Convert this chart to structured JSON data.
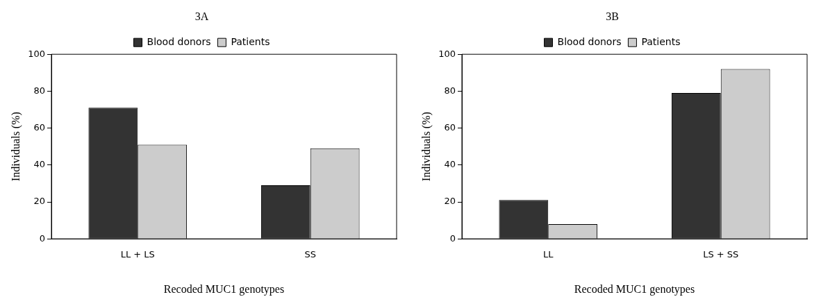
{
  "chart_data": [
    {
      "type": "bar",
      "title": "3A",
      "xlabel": "Recoded MUC1 genotypes",
      "ylabel": "Individuals (%)",
      "categories": [
        "LL + LS",
        "SS"
      ],
      "series": [
        {
          "name": "Blood donors",
          "color": "#333333",
          "values": [
            71,
            29
          ]
        },
        {
          "name": "Patients",
          "color": "#cccccc",
          "values": [
            51,
            49
          ]
        }
      ],
      "ylim": [
        0,
        100
      ],
      "yticks": [
        0,
        20,
        40,
        60,
        80,
        100
      ],
      "legend": "top",
      "grid": false
    },
    {
      "type": "bar",
      "title": "3B",
      "xlabel": "Recoded MUC1 genotypes",
      "ylabel": "Individuals (%)",
      "categories": [
        "LL",
        "LS + SS"
      ],
      "series": [
        {
          "name": "Blood donors",
          "color": "#333333",
          "values": [
            21,
            79
          ]
        },
        {
          "name": "Patients",
          "color": "#cccccc",
          "values": [
            8,
            92
          ]
        }
      ],
      "ylim": [
        0,
        100
      ],
      "yticks": [
        0,
        20,
        40,
        60,
        80,
        100
      ],
      "legend": "top",
      "grid": false
    }
  ]
}
